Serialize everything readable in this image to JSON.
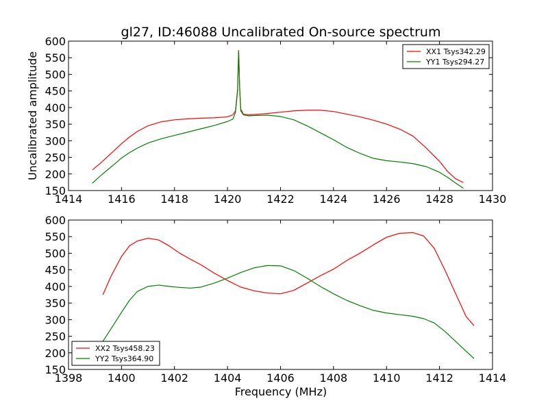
{
  "figure": {
    "title": "gl27, ID:46088 Uncalibrated On-source spectrum",
    "xlabel": "Frequency (MHz)"
  },
  "colors": {
    "red": "#ff0000",
    "green": "#008000"
  },
  "chart_data": [
    {
      "type": "line",
      "title": "gl27, ID:46088 Uncalibrated On-source spectrum",
      "xlabel": "",
      "ylabel": "Uncalibrated amplitude",
      "xlim": [
        1414,
        1430
      ],
      "ylim": [
        150,
        600
      ],
      "xticks": [
        1414,
        1416,
        1418,
        1420,
        1422,
        1424,
        1426,
        1428,
        1430
      ],
      "yticks": [
        150,
        200,
        250,
        300,
        350,
        400,
        450,
        500,
        550,
        600
      ],
      "legend": "top-right",
      "grid": false,
      "series": [
        {
          "name": "XX1 Tsys342.29",
          "color": "#ff0000",
          "x": [
            1414.9,
            1415.2,
            1415.5,
            1415.8,
            1416.0,
            1416.3,
            1416.6,
            1417.0,
            1417.5,
            1418.0,
            1418.5,
            1419.0,
            1419.5,
            1420.0,
            1420.2,
            1420.3,
            1420.38,
            1420.42,
            1420.46,
            1420.5,
            1420.6,
            1420.8,
            1421.0,
            1421.5,
            1422.0,
            1422.5,
            1423.0,
            1423.5,
            1424.0,
            1424.5,
            1425.0,
            1425.5,
            1426.0,
            1426.5,
            1427.0,
            1427.5,
            1428.0,
            1428.3,
            1428.6,
            1428.9
          ],
          "values": [
            212,
            232,
            254,
            276,
            291,
            311,
            328,
            345,
            357,
            363,
            366,
            368,
            369,
            372,
            378,
            390,
            455,
            572,
            460,
            395,
            380,
            378,
            379,
            382,
            386,
            390,
            392,
            392,
            388,
            380,
            372,
            362,
            350,
            335,
            314,
            278,
            238,
            208,
            186,
            174
          ]
        },
        {
          "name": "YY1 Tsys294.27",
          "color": "#008000",
          "x": [
            1414.9,
            1415.2,
            1415.5,
            1415.8,
            1416.0,
            1416.3,
            1416.6,
            1417.0,
            1417.5,
            1418.0,
            1418.5,
            1419.0,
            1419.5,
            1420.0,
            1420.2,
            1420.3,
            1420.38,
            1420.42,
            1420.46,
            1420.5,
            1420.6,
            1420.8,
            1421.0,
            1421.5,
            1422.0,
            1422.5,
            1423.0,
            1423.5,
            1424.0,
            1424.5,
            1425.0,
            1425.5,
            1426.0,
            1426.5,
            1427.0,
            1427.5,
            1428.0,
            1428.3,
            1428.6,
            1428.9
          ],
          "values": [
            172,
            194,
            214,
            234,
            248,
            264,
            278,
            293,
            306,
            316,
            326,
            336,
            346,
            358,
            365,
            385,
            450,
            570,
            455,
            390,
            378,
            375,
            376,
            377,
            373,
            363,
            345,
            324,
            303,
            280,
            262,
            247,
            240,
            236,
            231,
            222,
            205,
            190,
            173,
            157
          ]
        }
      ]
    },
    {
      "type": "line",
      "title": "",
      "xlabel": "Frequency (MHz)",
      "ylabel": "",
      "xlim": [
        1398,
        1414
      ],
      "ylim": [
        150,
        600
      ],
      "xticks": [
        1398,
        1400,
        1402,
        1404,
        1406,
        1408,
        1410,
        1412,
        1414
      ],
      "yticks": [
        150,
        200,
        250,
        300,
        350,
        400,
        450,
        500,
        550,
        600
      ],
      "legend": "bottom-left",
      "grid": false,
      "series": [
        {
          "name": "XX2 Tsys458.23",
          "color": "#ff0000",
          "x": [
            1399.3,
            1399.6,
            1400.0,
            1400.3,
            1400.6,
            1401.0,
            1401.4,
            1401.8,
            1402.2,
            1402.6,
            1403.0,
            1403.5,
            1404.0,
            1404.5,
            1405.0,
            1405.5,
            1406.0,
            1406.5,
            1407.0,
            1407.5,
            1408.0,
            1408.5,
            1409.0,
            1409.5,
            1410.0,
            1410.5,
            1411.0,
            1411.4,
            1411.8,
            1412.2,
            1412.6,
            1413.0,
            1413.3
          ],
          "values": [
            375,
            430,
            490,
            522,
            537,
            545,
            540,
            522,
            500,
            482,
            465,
            440,
            418,
            398,
            387,
            380,
            378,
            388,
            410,
            432,
            452,
            478,
            500,
            525,
            548,
            560,
            562,
            552,
            515,
            450,
            380,
            310,
            282
          ]
        },
        {
          "name": "YY2 Tsys364.90",
          "color": "#008000",
          "x": [
            1399.3,
            1399.6,
            1400.0,
            1400.3,
            1400.6,
            1401.0,
            1401.4,
            1401.8,
            1402.2,
            1402.6,
            1403.0,
            1403.5,
            1404.0,
            1404.5,
            1405.0,
            1405.5,
            1406.0,
            1406.5,
            1407.0,
            1407.5,
            1408.0,
            1408.5,
            1409.0,
            1409.5,
            1410.0,
            1410.5,
            1411.0,
            1411.4,
            1411.8,
            1412.2,
            1412.6,
            1413.0,
            1413.3
          ],
          "values": [
            235,
            272,
            322,
            358,
            385,
            400,
            404,
            400,
            397,
            395,
            398,
            410,
            425,
            442,
            456,
            463,
            462,
            448,
            425,
            400,
            378,
            358,
            342,
            328,
            320,
            315,
            310,
            303,
            290,
            265,
            235,
            205,
            183
          ]
        }
      ]
    }
  ]
}
